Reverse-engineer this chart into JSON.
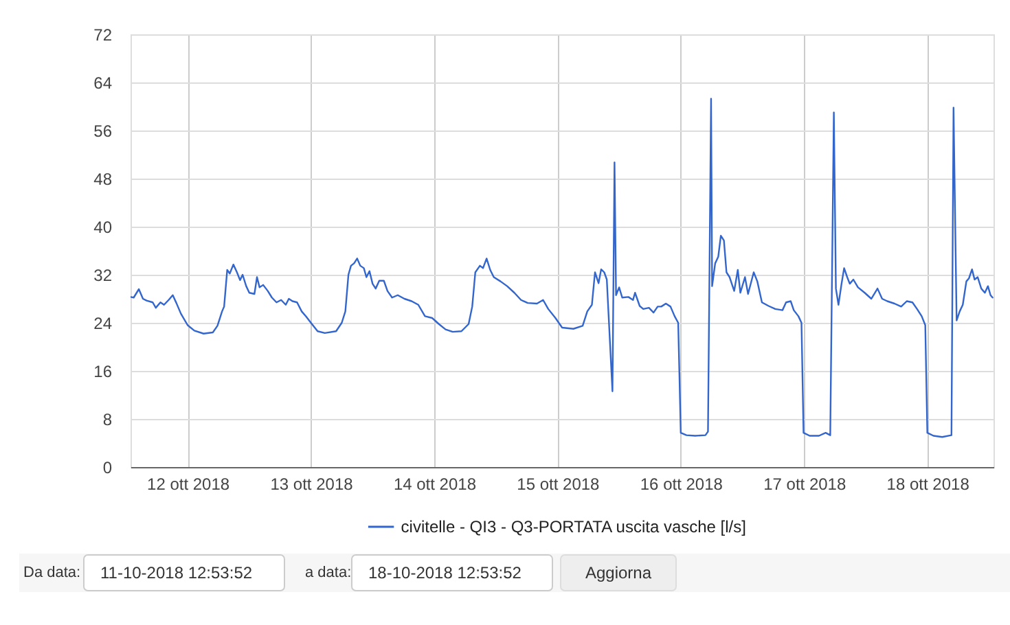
{
  "chart_data": {
    "type": "line",
    "x": [
      "2018-10-11T12:53",
      "2018-10-11T13:30",
      "2018-10-11T14:30",
      "2018-10-11T15:18",
      "2018-10-11T16:00",
      "2018-10-11T17:12",
      "2018-10-11T17:48",
      "2018-10-11T18:42",
      "2018-10-11T19:24",
      "2018-10-11T20:18",
      "2018-10-11T21:06",
      "2018-10-11T21:48",
      "2018-10-11T22:42",
      "2018-10-12T00:00",
      "2018-10-12T01:18",
      "2018-10-12T03:06",
      "2018-10-12T04:54",
      "2018-10-12T05:48",
      "2018-10-12T06:42",
      "2018-10-12T07:06",
      "2018-10-12T07:42",
      "2018-10-12T08:12",
      "2018-10-12T08:54",
      "2018-10-12T09:36",
      "2018-10-12T10:12",
      "2018-10-12T10:42",
      "2018-10-12T11:24",
      "2018-10-12T12:00",
      "2018-10-12T13:00",
      "2018-10-12T13:30",
      "2018-10-12T14:00",
      "2018-10-12T14:42",
      "2018-10-12T15:36",
      "2018-10-12T16:24",
      "2018-10-12T17:18",
      "2018-10-12T18:12",
      "2018-10-12T19:06",
      "2018-10-12T19:42",
      "2018-10-12T20:24",
      "2018-10-12T21:18",
      "2018-10-12T22:12",
      "2018-10-12T23:06",
      "2018-10-13T00:00",
      "2018-10-13T01:18",
      "2018-10-13T02:42",
      "2018-10-13T04:54",
      "2018-10-13T06:00",
      "2018-10-13T06:42",
      "2018-10-13T07:18",
      "2018-10-13T07:48",
      "2018-10-13T08:24",
      "2018-10-13T09:00",
      "2018-10-13T09:36",
      "2018-10-13T10:18",
      "2018-10-13T10:48",
      "2018-10-13T11:24",
      "2018-10-13T12:00",
      "2018-10-13T12:36",
      "2018-10-13T13:18",
      "2018-10-13T14:12",
      "2018-10-13T14:54",
      "2018-10-13T15:48",
      "2018-10-13T16:54",
      "2018-10-13T18:12",
      "2018-10-13T19:36",
      "2018-10-13T20:54",
      "2018-10-13T22:12",
      "2018-10-13T23:36",
      "2018-10-14T00:54",
      "2018-10-14T02:12",
      "2018-10-14T03:36",
      "2018-10-14T05:18",
      "2018-10-14T06:42",
      "2018-10-14T07:24",
      "2018-10-14T08:00",
      "2018-10-14T08:54",
      "2018-10-14T09:30",
      "2018-10-14T10:12",
      "2018-10-14T10:54",
      "2018-10-14T11:36",
      "2018-10-14T12:54",
      "2018-10-14T14:12",
      "2018-10-14T15:36",
      "2018-10-14T16:54",
      "2018-10-14T18:12",
      "2018-10-14T20:00",
      "2018-10-14T21:12",
      "2018-10-14T22:12",
      "2018-10-14T23:36",
      "2018-10-15T00:54",
      "2018-10-15T03:06",
      "2018-10-15T04:54",
      "2018-10-15T05:48",
      "2018-10-15T06:42",
      "2018-10-15T07:18",
      "2018-10-15T08:00",
      "2018-10-15T08:30",
      "2018-10-15T09:06",
      "2018-10-15T09:36",
      "2018-10-15T10:00",
      "2018-10-15T10:42",
      "2018-10-15T11:06",
      "2018-10-15T11:24",
      "2018-10-15T12:00",
      "2018-10-15T12:36",
      "2018-10-15T13:48",
      "2018-10-15T14:42",
      "2018-10-15T15:06",
      "2018-10-15T16:00",
      "2018-10-15T16:42",
      "2018-10-15T17:48",
      "2018-10-15T18:42",
      "2018-10-15T19:30",
      "2018-10-15T20:12",
      "2018-10-15T21:06",
      "2018-10-15T22:00",
      "2018-10-15T22:48",
      "2018-10-15T23:30",
      "2018-10-16T00:00",
      "2018-10-16T01:06",
      "2018-10-16T02:48",
      "2018-10-16T04:48",
      "2018-10-16T05:18",
      "2018-10-16T05:54",
      "2018-10-16T06:06",
      "2018-10-16T06:42",
      "2018-10-16T07:18",
      "2018-10-16T07:48",
      "2018-10-16T08:24",
      "2018-10-16T08:54",
      "2018-10-16T09:30",
      "2018-10-16T10:24",
      "2018-10-16T11:06",
      "2018-10-16T11:36",
      "2018-10-16T12:30",
      "2018-10-16T13:06",
      "2018-10-16T14:12",
      "2018-10-16T14:54",
      "2018-10-16T15:48",
      "2018-10-16T17:06",
      "2018-10-16T18:24",
      "2018-10-16T19:48",
      "2018-10-16T20:30",
      "2018-10-16T21:24",
      "2018-10-16T22:00",
      "2018-10-16T22:54",
      "2018-10-16T23:30",
      "2018-10-16T23:54",
      "2018-10-17T01:06",
      "2018-10-17T02:54",
      "2018-10-17T04:12",
      "2018-10-17T05:06",
      "2018-10-17T05:48",
      "2018-10-17T06:12",
      "2018-10-17T06:42",
      "2018-10-17T07:18",
      "2018-10-17T07:48",
      "2018-10-17T08:24",
      "2018-10-17T08:54",
      "2018-10-17T09:36",
      "2018-10-17T10:30",
      "2018-10-17T11:48",
      "2018-10-17T13:06",
      "2018-10-17T14:18",
      "2018-10-17T15:12",
      "2018-10-17T16:12",
      "2018-10-17T17:36",
      "2018-10-17T18:54",
      "2018-10-17T20:00",
      "2018-10-17T21:06",
      "2018-10-17T22:00",
      "2018-10-17T22:54",
      "2018-10-17T23:36",
      "2018-10-18T00:00",
      "2018-10-18T01:12",
      "2018-10-18T02:54",
      "2018-10-18T04:42",
      "2018-10-18T05:06",
      "2018-10-18T05:42",
      "2018-10-18T06:18",
      "2018-10-18T06:54",
      "2018-10-18T07:36",
      "2018-10-18T08:06",
      "2018-10-18T08:42",
      "2018-10-18T09:12",
      "2018-10-18T09:48",
      "2018-10-18T10:30",
      "2018-10-18T11:12",
      "2018-10-18T11:48",
      "2018-10-18T12:18",
      "2018-10-18T12:42"
    ],
    "series": [
      {
        "name": "civitelle - QI3 - Q3-PORTATA uscita vasche [l/s]",
        "color": "#3366cc",
        "values": [
          28.3,
          28.2,
          29.6,
          28.0,
          27.7,
          27.4,
          26.5,
          27.4,
          27.0,
          27.8,
          28.6,
          27.3,
          25.5,
          23.6,
          22.7,
          22.2,
          22.4,
          23.5,
          25.9,
          26.7,
          32.8,
          32.2,
          33.7,
          32.4,
          31.1,
          32.0,
          30.1,
          29.0,
          28.8,
          31.6,
          29.9,
          30.3,
          29.3,
          28.2,
          27.4,
          27.8,
          27.0,
          28.0,
          27.6,
          27.4,
          25.9,
          25.0,
          24.0,
          22.6,
          22.3,
          22.6,
          24.0,
          25.9,
          32.0,
          33.5,
          33.9,
          34.7,
          33.5,
          33.1,
          31.6,
          32.6,
          30.5,
          29.7,
          31.0,
          31.0,
          29.3,
          28.2,
          28.6,
          28.0,
          27.6,
          27.0,
          25.1,
          24.8,
          23.8,
          22.9,
          22.5,
          22.6,
          23.8,
          26.7,
          32.4,
          33.5,
          33.1,
          34.7,
          32.8,
          31.6,
          30.9,
          30.1,
          29.0,
          27.8,
          27.3,
          27.2,
          27.8,
          26.3,
          24.8,
          23.2,
          23.0,
          23.5,
          25.9,
          27.0,
          32.4,
          30.6,
          32.9,
          32.4,
          31.2,
          24.4,
          12.6,
          50.7,
          28.6,
          29.9,
          28.2,
          28.3,
          27.8,
          29.0,
          26.8,
          26.3,
          26.5,
          25.7,
          26.7,
          26.7,
          27.2,
          26.7,
          25.1,
          24.0,
          5.7,
          5.3,
          5.2,
          5.3,
          5.9,
          61.3,
          30.1,
          33.9,
          35.0,
          38.5,
          37.7,
          32.4,
          31.6,
          29.3,
          32.8,
          29.0,
          31.6,
          28.8,
          32.4,
          30.9,
          27.4,
          26.8,
          26.3,
          26.1,
          27.4,
          27.6,
          26.1,
          25.1,
          24.0,
          5.7,
          5.2,
          5.2,
          5.7,
          5.3,
          59.0,
          29.7,
          27.0,
          30.5,
          33.1,
          31.6,
          30.5,
          31.2,
          29.9,
          29.0,
          28.0,
          29.7,
          28.0,
          27.6,
          27.2,
          26.7,
          27.6,
          27.4,
          26.3,
          25.1,
          23.6,
          5.7,
          5.2,
          5.0,
          5.3,
          59.8,
          24.4,
          25.9,
          27.0,
          30.9,
          31.4,
          32.9,
          31.2,
          31.6,
          29.7,
          29.0,
          30.1,
          28.6,
          28.2
        ]
      }
    ],
    "xlim": [
      "2018-10-11T12:53",
      "2018-10-18T12:53"
    ],
    "xticks": [
      {
        "value": "2018-10-12",
        "label": "12 ott 2018"
      },
      {
        "value": "2018-10-13",
        "label": "13 ott 2018"
      },
      {
        "value": "2018-10-14",
        "label": "14 ott 2018"
      },
      {
        "value": "2018-10-15",
        "label": "15 ott 2018"
      },
      {
        "value": "2018-10-16",
        "label": "16 ott 2018"
      },
      {
        "value": "2018-10-17",
        "label": "17 ott 2018"
      },
      {
        "value": "2018-10-18",
        "label": "18 ott 2018"
      }
    ],
    "ylim": [
      0,
      72
    ],
    "yticks": [
      0,
      8,
      16,
      24,
      32,
      40,
      48,
      56,
      64,
      72
    ],
    "grid": true,
    "legend": "bottom",
    "line_style": "solid",
    "annotations": [
      "Da data:",
      "11-10-2018 12:53:52",
      "a data:",
      "18-10-2018 12:53:52",
      "Aggiorna"
    ]
  }
}
